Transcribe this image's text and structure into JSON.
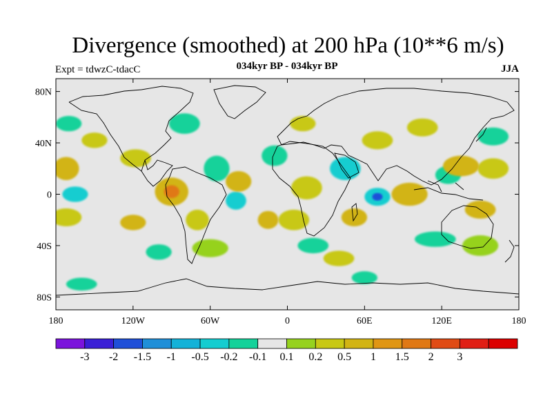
{
  "title": "Divergence (smoothed) at 200 hPa (10**6 m/s)",
  "subtitle_left": "Expt = tdwzC-tdacC",
  "subtitle_center": "034kyr BP - 034kyr BP",
  "subtitle_right": "JJA",
  "map": {
    "lon_range": [
      -180,
      180
    ],
    "lat_range": [
      -90,
      90
    ],
    "background_color": "#e6e6e6",
    "lat_ticks": [
      {
        "value": 80,
        "label": "80N"
      },
      {
        "value": 40,
        "label": "40N"
      },
      {
        "value": 0,
        "label": "0"
      },
      {
        "value": -40,
        "label": "40S"
      },
      {
        "value": -80,
        "label": "80S"
      }
    ],
    "lon_ticks": [
      {
        "value": -180,
        "label": "180"
      },
      {
        "value": -120,
        "label": "120W"
      },
      {
        "value": -60,
        "label": "60W"
      },
      {
        "value": 0,
        "label": "0"
      },
      {
        "value": 60,
        "label": "60E"
      },
      {
        "value": 120,
        "label": "120E"
      },
      {
        "value": 180,
        "label": "180"
      }
    ]
  },
  "colorbar": {
    "colors": [
      "#7b14dc",
      "#3a1fd6",
      "#1f4fd8",
      "#1f8fd8",
      "#14b2d8",
      "#14cdd0",
      "#14d29a",
      "#e6e6e6",
      "#96d21e",
      "#c8c814",
      "#d2b414",
      "#e09614",
      "#e07814",
      "#e04b14",
      "#e01e14",
      "#dc0000"
    ],
    "labels": [
      "-3",
      "-2",
      "-1.5",
      "-1",
      "-0.5",
      "-0.2",
      "-0.1",
      "0.1",
      "0.2",
      "0.5",
      "1",
      "1.5",
      "2",
      "3"
    ]
  },
  "field_blobs": [
    {
      "lon": -90,
      "lat": 2,
      "rx": 13,
      "ry": 11,
      "level": 3
    },
    {
      "lon": -90,
      "lat": 2,
      "rx": 6,
      "ry": 5,
      "level": 5
    },
    {
      "lon": -38,
      "lat": 10,
      "rx": 10,
      "ry": 8,
      "level": 3
    },
    {
      "lon": -118,
      "lat": 28,
      "rx": 12,
      "ry": 7,
      "level": 2
    },
    {
      "lon": -172,
      "lat": 20,
      "rx": 10,
      "ry": 9,
      "level": 3
    },
    {
      "lon": -172,
      "lat": -18,
      "rx": 12,
      "ry": 7,
      "level": 2
    },
    {
      "lon": -120,
      "lat": -22,
      "rx": 10,
      "ry": 6,
      "level": 3
    },
    {
      "lon": -70,
      "lat": -20,
      "rx": 9,
      "ry": 8,
      "level": 2
    },
    {
      "lon": -15,
      "lat": -20,
      "rx": 8,
      "ry": 7,
      "level": 3
    },
    {
      "lon": 5,
      "lat": -20,
      "rx": 12,
      "ry": 8,
      "level": 2
    },
    {
      "lon": 15,
      "lat": 5,
      "rx": 12,
      "ry": 9,
      "level": 2
    },
    {
      "lon": 52,
      "lat": -18,
      "rx": 10,
      "ry": 7,
      "level": 3
    },
    {
      "lon": 95,
      "lat": 0,
      "rx": 14,
      "ry": 9,
      "level": 3
    },
    {
      "lon": 135,
      "lat": 22,
      "rx": 14,
      "ry": 8,
      "level": 3
    },
    {
      "lon": 160,
      "lat": 20,
      "rx": 12,
      "ry": 8,
      "level": 2
    },
    {
      "lon": 150,
      "lat": -12,
      "rx": 12,
      "ry": 7,
      "level": 3
    },
    {
      "lon": 70,
      "lat": 42,
      "rx": 12,
      "ry": 7,
      "level": 2
    },
    {
      "lon": 105,
      "lat": 52,
      "rx": 12,
      "ry": 7,
      "level": 2
    },
    {
      "lon": 12,
      "lat": 55,
      "rx": 10,
      "ry": 6,
      "level": 2
    },
    {
      "lon": -150,
      "lat": 42,
      "rx": 10,
      "ry": 6,
      "level": 2
    },
    {
      "lon": 150,
      "lat": -40,
      "rx": 14,
      "ry": 8,
      "level": 1
    },
    {
      "lon": -60,
      "lat": -42,
      "rx": 14,
      "ry": 7,
      "level": 1
    },
    {
      "lon": 40,
      "lat": -50,
      "rx": 12,
      "ry": 6,
      "level": 2
    },
    {
      "lon": 70,
      "lat": -2,
      "rx": 10,
      "ry": 7,
      "level": -2
    },
    {
      "lon": 70,
      "lat": -2,
      "rx": 4,
      "ry": 3,
      "level": -5
    },
    {
      "lon": -165,
      "lat": 0,
      "rx": 10,
      "ry": 6,
      "level": -2
    },
    {
      "lon": -55,
      "lat": 20,
      "rx": 10,
      "ry": 10,
      "level": -1
    },
    {
      "lon": -170,
      "lat": 55,
      "rx": 10,
      "ry": 6,
      "level": -1
    },
    {
      "lon": -80,
      "lat": 55,
      "rx": 12,
      "ry": 8,
      "level": -1
    },
    {
      "lon": 45,
      "lat": 20,
      "rx": 12,
      "ry": 9,
      "level": -2
    },
    {
      "lon": 115,
      "lat": -35,
      "rx": 16,
      "ry": 6,
      "level": -1
    },
    {
      "lon": 125,
      "lat": 15,
      "rx": 10,
      "ry": 7,
      "level": -1
    },
    {
      "lon": -10,
      "lat": 30,
      "rx": 10,
      "ry": 8,
      "level": -1
    },
    {
      "lon": -160,
      "lat": -70,
      "rx": 12,
      "ry": 5,
      "level": -1
    },
    {
      "lon": 60,
      "lat": -65,
      "rx": 10,
      "ry": 5,
      "level": -1
    },
    {
      "lon": 20,
      "lat": -40,
      "rx": 12,
      "ry": 6,
      "level": -1
    },
    {
      "lon": -100,
      "lat": -45,
      "rx": 10,
      "ry": 6,
      "level": -1
    },
    {
      "lon": 160,
      "lat": 45,
      "rx": 12,
      "ry": 7,
      "level": -1
    },
    {
      "lon": -40,
      "lat": -5,
      "rx": 8,
      "ry": 7,
      "level": -2
    }
  ]
}
